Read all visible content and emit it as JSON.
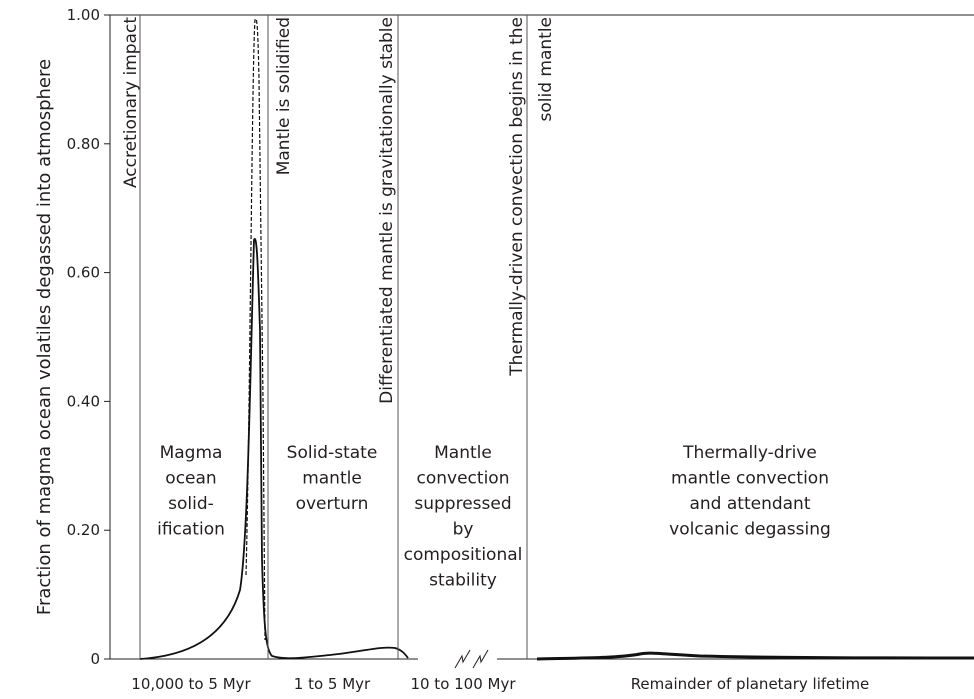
{
  "chart_data": {
    "type": "schematic",
    "y_label": "Fraction of magma ocean volatiles degassed into atmosphere",
    "ylim": [
      0,
      1
    ],
    "yticks": [
      0,
      {
        "value": 0.2,
        "label": "0.20"
      },
      {
        "value": 0.4,
        "label": "0.40"
      },
      {
        "value": 0.6,
        "label": "0.60"
      },
      {
        "value": 0.8,
        "label": "0.80"
      },
      {
        "value": 1,
        "label": "1.00"
      }
    ],
    "events": [
      {
        "lines": [
          "Accretionary impact"
        ]
      },
      {
        "lines": [
          "Mantle is solidified"
        ]
      },
      {
        "lines": [
          "Differentiated mantle is gravitationally stable"
        ]
      },
      {
        "lines": [
          "Thermally-driven convection begins in the",
          "solid mantle"
        ]
      }
    ],
    "phases": [
      {
        "lines": [
          "Magma",
          "ocean",
          "solid-",
          "ification"
        ],
        "period": "10,000 to 5 Myr"
      },
      {
        "lines": [
          "Solid-state",
          "mantle",
          "overturn"
        ],
        "period": "1 to 5 Myr"
      },
      {
        "lines": [
          "Mantle",
          "convection",
          "suppressed",
          "by",
          "compositional",
          "stability"
        ],
        "period": "10 to 100 Myr"
      },
      {
        "lines": [
          "Thermally-drive",
          "mantle convection",
          "and attendant",
          "volcanic degassing"
        ],
        "period": "Remainder of planetary lifetime"
      }
    ]
  }
}
